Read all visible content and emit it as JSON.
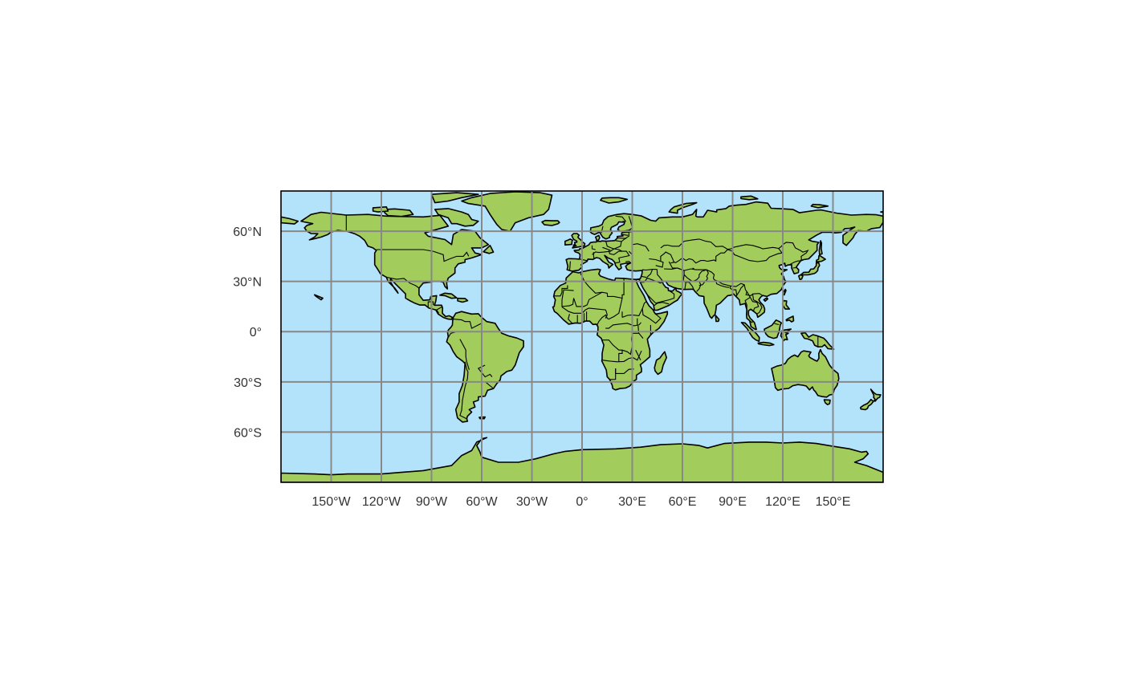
{
  "map": {
    "projection": "equirectangular",
    "lon_range": [
      -180,
      180
    ],
    "lat_range": [
      -90,
      84
    ],
    "gridlines": {
      "longitudes": [
        -150,
        -120,
        -90,
        -60,
        -30,
        0,
        30,
        60,
        90,
        120,
        150
      ],
      "latitudes": [
        60,
        30,
        0,
        -30,
        -60
      ]
    },
    "lon_labels": [
      "150°W",
      "120°W",
      "90°W",
      "60°W",
      "30°W",
      "0°",
      "30°E",
      "60°E",
      "90°E",
      "120°E",
      "150°E"
    ],
    "lat_labels": [
      "60°N",
      "30°N",
      "0°",
      "30°S",
      "60°S"
    ],
    "colors": {
      "ocean": "#b3e2fb",
      "land": "#a2cc5c",
      "grid": "#888888",
      "coastline": "#000000"
    }
  }
}
